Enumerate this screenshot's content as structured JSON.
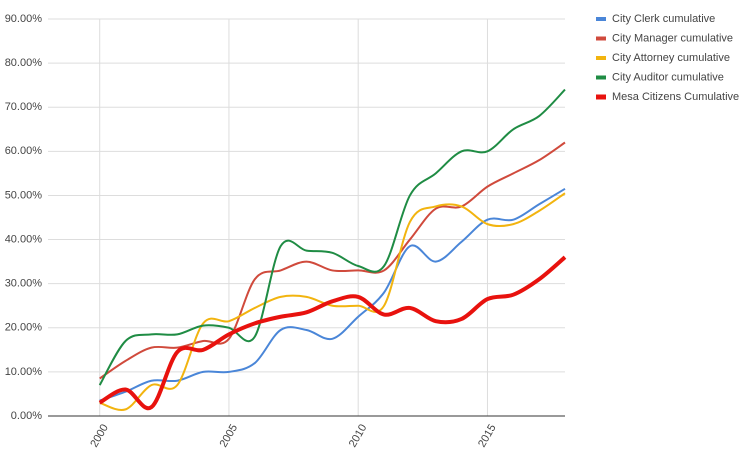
{
  "chart_data": {
    "type": "line",
    "x": [
      2000,
      2001,
      2002,
      2003,
      2004,
      2005,
      2006,
      2007,
      2008,
      2009,
      2010,
      2011,
      2012,
      2013,
      2014,
      2015,
      2016,
      2017,
      2018
    ],
    "series": [
      {
        "name": "City Clerk cumulative",
        "color": "#4a86d8",
        "width": 2,
        "values": [
          3.5,
          5.5,
          8,
          8,
          10,
          10,
          12,
          19.5,
          19.5,
          17.5,
          22.5,
          28,
          38.5,
          35,
          39.5,
          44.5,
          44.5,
          48,
          51.5
        ]
      },
      {
        "name": "City Manager cumulative",
        "color": "#d04a3c",
        "width": 2,
        "values": [
          8.5,
          12.5,
          15.5,
          15.5,
          17,
          17.5,
          31,
          33,
          35,
          33,
          33,
          33,
          40,
          47,
          47.5,
          52,
          55,
          58,
          62
        ]
      },
      {
        "name": "City Attorney cumulative",
        "color": "#f2b40f",
        "width": 2,
        "values": [
          3,
          1.5,
          7,
          7,
          21,
          21.5,
          24.5,
          27,
          27,
          25,
          25,
          25,
          44,
          47.5,
          47.5,
          43.5,
          43.5,
          46.5,
          50.5
        ]
      },
      {
        "name": "City Auditor cumulative",
        "color": "#1f8c44",
        "width": 2,
        "values": [
          7,
          17,
          18.5,
          18.5,
          20.5,
          20,
          18,
          38.5,
          37.5,
          37,
          34,
          34,
          50,
          55,
          60,
          60,
          65,
          68,
          74
        ]
      },
      {
        "name": "Mesa Citizens Cumulative",
        "color": "#e8120e",
        "width": 4,
        "values": [
          3,
          6,
          2,
          14.5,
          15,
          18.5,
          21,
          22.5,
          23.5,
          26,
          27,
          23,
          24.5,
          21.5,
          22,
          26.5,
          27.5,
          31,
          36
        ]
      }
    ],
    "xlim": [
      1998,
      2018
    ],
    "xticks": [
      2000,
      2005,
      2010,
      2015
    ],
    "ylim": [
      0,
      90
    ],
    "yticks": [
      {
        "value": 0,
        "label": "0.00%"
      },
      {
        "value": 10,
        "label": "10.00%"
      },
      {
        "value": 20,
        "label": "20.00%"
      },
      {
        "value": 30,
        "label": "30.00%"
      },
      {
        "value": 40,
        "label": "40.00%"
      },
      {
        "value": 50,
        "label": "50.00%"
      },
      {
        "value": 60,
        "label": "60.00%"
      },
      {
        "value": 70,
        "label": "70.00%"
      },
      {
        "value": 80,
        "label": "80.00%"
      },
      {
        "value": 90,
        "label": "90.00%"
      }
    ],
    "grid": true,
    "legend": "right"
  }
}
